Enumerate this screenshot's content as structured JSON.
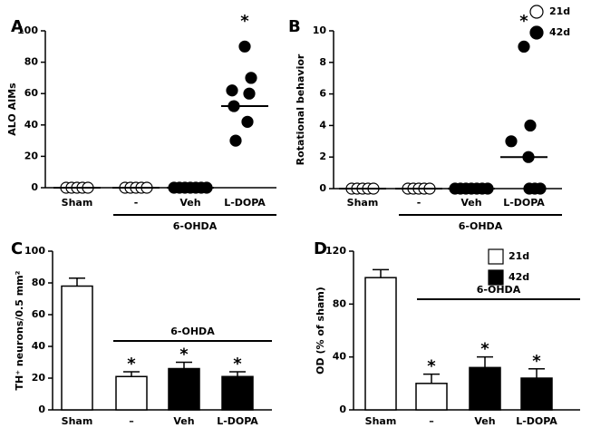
{
  "chart_data": [
    {
      "type": "dot",
      "panel_label": "A",
      "ylabel": "ALO AIMs",
      "categories": [
        "Sham",
        "-",
        "Veh",
        "L-DOPA"
      ],
      "group_label": "6-OHDA",
      "ylim": [
        0,
        100
      ],
      "yticks": [
        0,
        20,
        40,
        60,
        80,
        100
      ],
      "series": [
        {
          "fill": "#ffffff",
          "values": [
            [
              0,
              0,
              0,
              0,
              0
            ],
            [
              0,
              0,
              0,
              0,
              0
            ],
            null,
            null
          ]
        },
        {
          "fill": "#000000",
          "values": [
            null,
            null,
            [
              0,
              0,
              0,
              0,
              0,
              0,
              0
            ],
            [
              90,
              70,
              62,
              60,
              52,
              42,
              30
            ]
          ]
        }
      ],
      "medians": [
        0,
        0,
        0,
        52
      ],
      "significance": [
        null,
        null,
        null,
        "*"
      ]
    },
    {
      "type": "dot",
      "panel_label": "B",
      "ylabel": "Rotational behavior",
      "categories": [
        "Sham",
        "-",
        "Veh",
        "L-DOPA"
      ],
      "group_label": "6-OHDA",
      "ylim": [
        0,
        10
      ],
      "yticks": [
        0,
        2,
        4,
        6,
        8,
        10
      ],
      "series": [
        {
          "name": "21d",
          "fill": "#ffffff",
          "values": [
            [
              0,
              0,
              0,
              0,
              0
            ],
            [
              0,
              0,
              0,
              0,
              0
            ],
            null,
            null
          ]
        },
        {
          "name": "42d",
          "fill": "#000000",
          "values": [
            null,
            null,
            [
              0,
              0,
              0,
              0,
              0,
              0,
              0
            ],
            [
              9,
              4,
              3,
              2,
              0,
              0,
              0
            ]
          ]
        }
      ],
      "medians": [
        0,
        0,
        0,
        2
      ],
      "significance": [
        null,
        null,
        null,
        "*"
      ],
      "legend": "top-right"
    },
    {
      "type": "bar",
      "panel_label": "C",
      "ylabel": "TH⁺ neurons/0.5 mm²",
      "categories": [
        "Sham",
        "–",
        "Veh",
        "L-DOPA"
      ],
      "group_label": "6-OHDA",
      "ylim": [
        0,
        100
      ],
      "yticks": [
        0,
        20,
        40,
        60,
        80,
        100
      ],
      "series": [
        {
          "fill": "#ffffff",
          "values": [
            78,
            21,
            null,
            null
          ],
          "errors": [
            5,
            3,
            null,
            null
          ]
        },
        {
          "fill": "#000000",
          "values": [
            null,
            null,
            26,
            21
          ],
          "errors": [
            null,
            null,
            4,
            3
          ]
        }
      ],
      "significance": [
        null,
        "*",
        "*",
        "*"
      ]
    },
    {
      "type": "bar",
      "panel_label": "D",
      "ylabel": "OD (% of sham)",
      "categories": [
        "Sham",
        "–",
        "Veh",
        "L-DOPA"
      ],
      "group_label": "6-OHDA",
      "ylim": [
        0,
        120
      ],
      "yticks": [
        0,
        40,
        80,
        120
      ],
      "series": [
        {
          "name": "21d",
          "fill": "#ffffff",
          "values": [
            100,
            20,
            null,
            null
          ],
          "errors": [
            6,
            7,
            null,
            null
          ]
        },
        {
          "name": "42d",
          "fill": "#000000",
          "values": [
            null,
            null,
            32,
            24
          ],
          "errors": [
            null,
            null,
            8,
            7
          ]
        }
      ],
      "significance": [
        null,
        "*",
        "*",
        "*"
      ],
      "legend": "top-right"
    }
  ]
}
